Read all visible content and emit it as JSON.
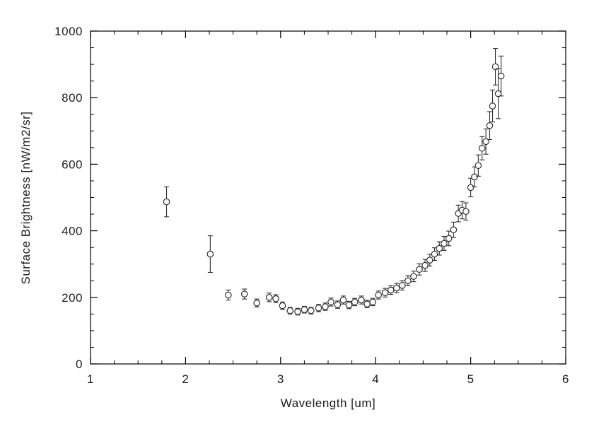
{
  "page": {
    "background": "#ffffff"
  },
  "chart_data": {
    "type": "scatter",
    "title": "",
    "xlabel": "Wavelength [um]",
    "ylabel": "Surface Brightness [nW/m2/sr]",
    "xlim": [
      1,
      6
    ],
    "ylim": [
      0,
      1000
    ],
    "xticks": [
      1,
      2,
      3,
      4,
      5,
      6
    ],
    "yticks": [
      0,
      200,
      400,
      600,
      800,
      1000
    ],
    "x_minor_step": 0.25,
    "y_minor_step": 50,
    "grid": false,
    "legend": "none",
    "marker": "open-circle",
    "error_bars": "vertical-with-caps",
    "axis_color": "#000000",
    "marker_color": "#2e2e2e",
    "points": [
      [
        1.8,
        487,
        45
      ],
      [
        2.26,
        330,
        55
      ],
      [
        2.45,
        207,
        15
      ],
      [
        2.62,
        210,
        15
      ],
      [
        2.75,
        183,
        12
      ],
      [
        2.88,
        200,
        13
      ],
      [
        2.95,
        196,
        12
      ],
      [
        3.02,
        175,
        11
      ],
      [
        3.1,
        160,
        10
      ],
      [
        3.18,
        157,
        10
      ],
      [
        3.25,
        163,
        10
      ],
      [
        3.32,
        160,
        10
      ],
      [
        3.4,
        168,
        11
      ],
      [
        3.47,
        172,
        11
      ],
      [
        3.53,
        186,
        12
      ],
      [
        3.6,
        178,
        11
      ],
      [
        3.66,
        192,
        12
      ],
      [
        3.72,
        177,
        11
      ],
      [
        3.78,
        186,
        11
      ],
      [
        3.85,
        192,
        12
      ],
      [
        3.91,
        180,
        11
      ],
      [
        3.97,
        186,
        11
      ],
      [
        4.03,
        207,
        12
      ],
      [
        4.1,
        214,
        13
      ],
      [
        4.16,
        222,
        13
      ],
      [
        4.22,
        228,
        14
      ],
      [
        4.28,
        236,
        14
      ],
      [
        4.34,
        250,
        15
      ],
      [
        4.4,
        263,
        16
      ],
      [
        4.46,
        284,
        17
      ],
      [
        4.52,
        296,
        18
      ],
      [
        4.57,
        312,
        18
      ],
      [
        4.62,
        330,
        19
      ],
      [
        4.67,
        347,
        20
      ],
      [
        4.72,
        362,
        21
      ],
      [
        4.77,
        377,
        22
      ],
      [
        4.82,
        403,
        23
      ],
      [
        4.87,
        452,
        25
      ],
      [
        4.91,
        462,
        26
      ],
      [
        4.95,
        458,
        26
      ],
      [
        5.0,
        530,
        28
      ],
      [
        5.04,
        562,
        30
      ],
      [
        5.08,
        596,
        32
      ],
      [
        5.12,
        648,
        35
      ],
      [
        5.16,
        668,
        38
      ],
      [
        5.2,
        716,
        42
      ],
      [
        5.23,
        775,
        48
      ],
      [
        5.26,
        893,
        55
      ],
      [
        5.29,
        812,
        75
      ],
      [
        5.32,
        865,
        60
      ]
    ]
  }
}
